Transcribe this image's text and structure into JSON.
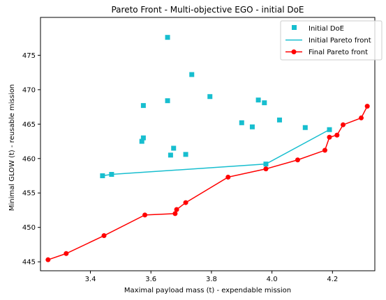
{
  "chart_data": {
    "type": "scatter",
    "title": "Pareto Front - Multi-objective EGO - initial DoE",
    "xlabel": "Maximal payload mass (t) - expendable mission",
    "ylabel": "Minimal GLOW (t) - reusable mission",
    "xlim": [
      3.235,
      4.34
    ],
    "ylim": [
      443.7,
      480.5
    ],
    "xticks": [
      3.4,
      3.6,
      3.8,
      4.0,
      4.2
    ],
    "xtick_labels": [
      "3.4",
      "3.6",
      "3.8",
      "4.0",
      "4.2"
    ],
    "yticks": [
      445,
      450,
      455,
      460,
      465,
      470,
      475
    ],
    "ytick_labels": [
      "445",
      "450",
      "455",
      "460",
      "465",
      "470",
      "475"
    ],
    "grid": false,
    "legend_position": "top-right",
    "series": [
      {
        "name": "Initial DoE",
        "kind": "markers",
        "marker": "square",
        "color": "#17becf",
        "x": [
          3.44,
          3.47,
          3.57,
          3.575,
          3.575,
          3.655,
          3.655,
          3.665,
          3.675,
          3.715,
          3.735,
          3.795,
          3.9,
          3.935,
          3.955,
          3.975,
          3.98,
          4.025,
          4.11,
          4.19
        ],
        "y": [
          457.5,
          457.7,
          462.5,
          463.0,
          467.7,
          477.6,
          468.4,
          460.5,
          461.5,
          460.6,
          472.2,
          469.0,
          465.2,
          464.6,
          468.5,
          468.1,
          459.2,
          465.6,
          464.5,
          464.2
        ]
      },
      {
        "name": "Initial Pareto front",
        "kind": "line",
        "color": "#17becf",
        "x": [
          3.44,
          3.47,
          3.98,
          4.19
        ],
        "y": [
          457.5,
          457.7,
          459.2,
          464.2
        ]
      },
      {
        "name": "Final Pareto front",
        "kind": "line-markers",
        "marker": "circle",
        "color": "#ff0000",
        "x": [
          3.26,
          3.32,
          3.445,
          3.58,
          3.68,
          3.685,
          3.715,
          3.855,
          3.98,
          4.085,
          4.175,
          4.19,
          4.215,
          4.235,
          4.295,
          4.315
        ],
        "y": [
          445.3,
          446.2,
          448.8,
          451.8,
          452.0,
          452.6,
          453.6,
          457.3,
          458.5,
          459.8,
          461.2,
          463.1,
          463.4,
          464.9,
          465.9,
          467.6
        ]
      }
    ]
  }
}
